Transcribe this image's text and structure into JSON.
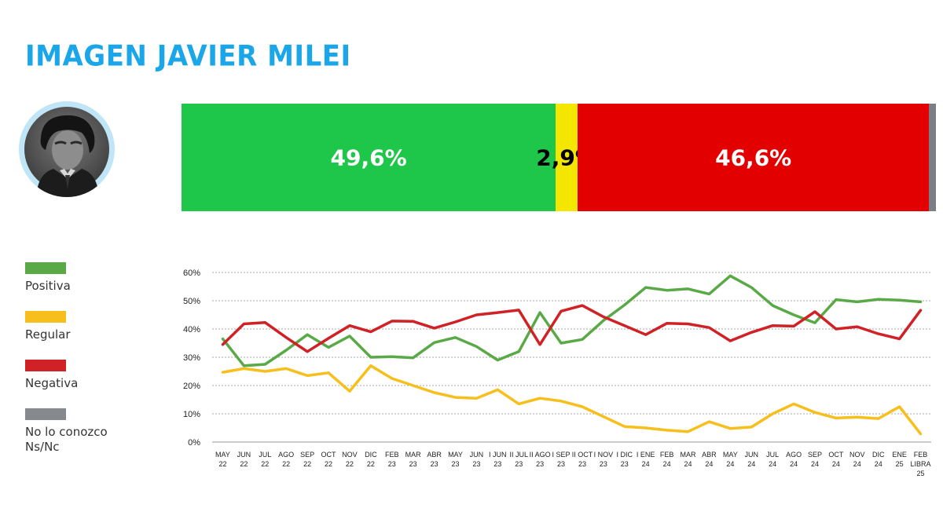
{
  "title": "IMAGEN JAVIER MILEI",
  "summary_bar": [
    {
      "name": "Positiva",
      "value": 49.6,
      "label": "49,6%",
      "color": "#1ec74a",
      "text_color": "#ffffff"
    },
    {
      "name": "Regular",
      "value": 2.9,
      "label": "2,9%",
      "color": "#f3e600",
      "text_color": "#000000"
    },
    {
      "name": "Negativa",
      "value": 46.6,
      "label": "46,6%",
      "color": "#e20000",
      "text_color": "#ffffff"
    },
    {
      "name": "No lo conozco Ns/Nc",
      "value": 0.9,
      "label": "",
      "color": "#7a7f85",
      "text_color": "#ffffff"
    }
  ],
  "legend": [
    {
      "label": "Positiva",
      "color": "#5aa947"
    },
    {
      "label": "Regular",
      "color": "#f6bf1c"
    },
    {
      "label": "Negativa",
      "color": "#d02226"
    },
    {
      "label": "No lo conozco\nNs/Nc",
      "color": "#868a8e"
    }
  ],
  "chart_data": {
    "type": "line",
    "title": "",
    "xlabel": "",
    "ylabel": "",
    "ylim": [
      0,
      60
    ],
    "y_ticks": [
      "0%",
      "10%",
      "20%",
      "30%",
      "40%",
      "50%",
      "60%"
    ],
    "grid": true,
    "x": [
      [
        "MAY",
        "22"
      ],
      [
        "JUN",
        "22"
      ],
      [
        "JUL",
        "22"
      ],
      [
        "AGO",
        "22"
      ],
      [
        "SEP",
        "22"
      ],
      [
        "OCT",
        "22"
      ],
      [
        "NOV",
        "22"
      ],
      [
        "DIC",
        "22"
      ],
      [
        "FEB",
        "23"
      ],
      [
        "MAR",
        "23"
      ],
      [
        "ABR",
        "23"
      ],
      [
        "MAY",
        "23"
      ],
      [
        "JUN",
        "23"
      ],
      [
        "I JUN",
        "23"
      ],
      [
        "II JUL",
        "23"
      ],
      [
        "II AGO",
        "23"
      ],
      [
        "I SEP",
        "23"
      ],
      [
        "II OCT",
        "23"
      ],
      [
        "I NOV",
        "23"
      ],
      [
        "I DIC",
        "23"
      ],
      [
        "I ENE",
        "24"
      ],
      [
        "FEB",
        "24"
      ],
      [
        "MAR",
        "24"
      ],
      [
        "ABR",
        "24"
      ],
      [
        "MAY",
        "24"
      ],
      [
        "JUN",
        "24"
      ],
      [
        "JUL",
        "24"
      ],
      [
        "AGO",
        "24"
      ],
      [
        "SEP",
        "24"
      ],
      [
        "OCT",
        "24"
      ],
      [
        "NOV",
        "24"
      ],
      [
        "DIC",
        "24"
      ],
      [
        "ENE",
        "25"
      ],
      [
        "FEB",
        "LIBRA",
        "25"
      ]
    ],
    "series": [
      {
        "name": "Positiva",
        "color": "#5aa947",
        "values": [
          36.5,
          27,
          27.5,
          32.5,
          38,
          33.5,
          37.5,
          30,
          30.2,
          29.8,
          35.2,
          37,
          33.8,
          29,
          32,
          45.8,
          35,
          36.3,
          43,
          48.5,
          54.7,
          53.7,
          54.2,
          52.4,
          58.8,
          54.7,
          48.3,
          45,
          42.2,
          50.4,
          49.6,
          50.5,
          50.2,
          49.6
        ]
      },
      {
        "name": "Regular",
        "color": "#f6bf1c",
        "values": [
          24.7,
          26,
          25,
          26,
          23.5,
          24.5,
          18,
          27,
          22.5,
          20,
          17.5,
          15.8,
          15.5,
          18.5,
          13.5,
          15.5,
          14.5,
          12.5,
          9,
          5.5,
          5,
          4.2,
          3.7,
          7.2,
          4.8,
          5.3,
          10,
          13.5,
          10.5,
          8.5,
          8.8,
          8.3,
          12.5,
          2.9
        ]
      },
      {
        "name": "Negativa",
        "color": "#d02226",
        "values": [
          34.5,
          41.8,
          42.3,
          37,
          32,
          36.7,
          41.2,
          39,
          42.8,
          42.7,
          40.3,
          42.5,
          45,
          45.8,
          46.7,
          34.5,
          46.3,
          48.3,
          44.3,
          41.2,
          38,
          42,
          41.8,
          40.5,
          35.8,
          38.8,
          41.2,
          41,
          46.1,
          40,
          40.8,
          38.3,
          36.5,
          46.6
        ]
      }
    ]
  }
}
